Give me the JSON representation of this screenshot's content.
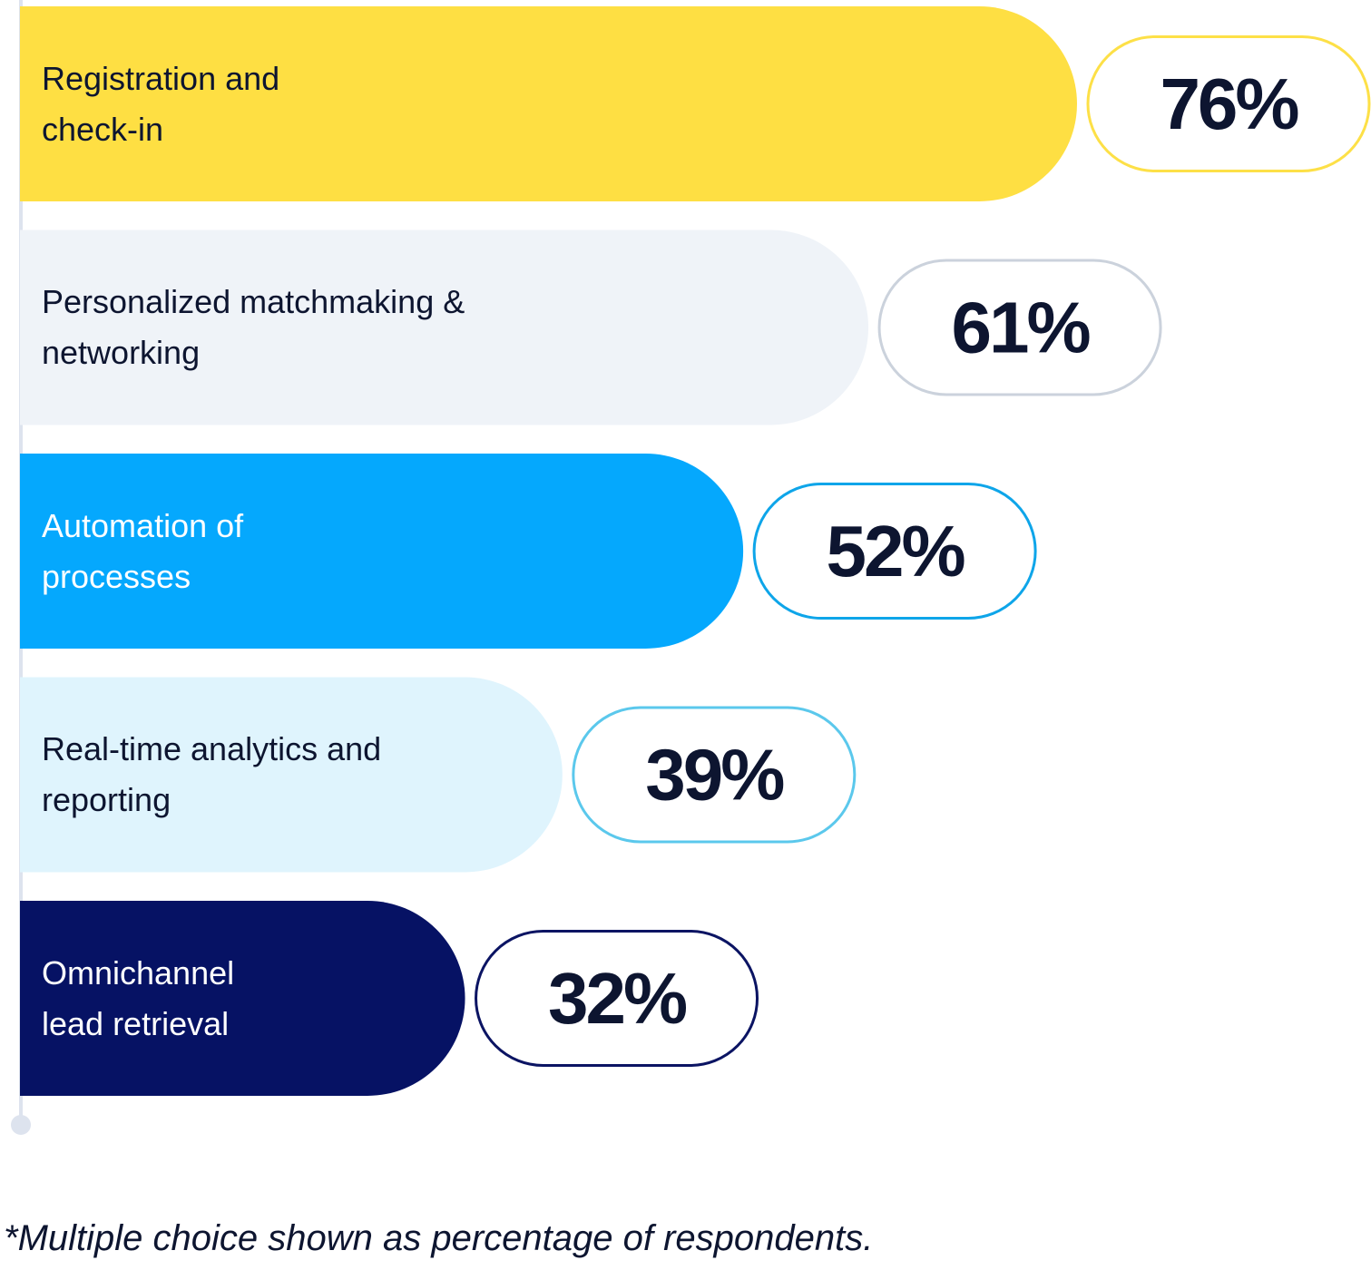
{
  "chart_data": {
    "type": "bar",
    "categories": [
      "Registration and check-in",
      "Personalized matchmaking & networking",
      "Automation of processes",
      "Real-time analytics and reporting",
      "Omnichannel lead retrieval"
    ],
    "values": [
      76,
      61,
      52,
      39,
      32
    ],
    "value_labels": [
      "76%",
      "61%",
      "52%",
      "39%",
      "32%"
    ],
    "colors": [
      "#fedf43",
      "#eff3f8",
      "#05a8fd",
      "#dff4fd",
      "#061264"
    ],
    "label_border_colors": [
      "#fde047",
      "#cbd2dc",
      "#0ea5e9",
      "#5bc8ec",
      "#0b1463"
    ],
    "footnote": "*Multiple choice shown as percentage of respondents."
  }
}
